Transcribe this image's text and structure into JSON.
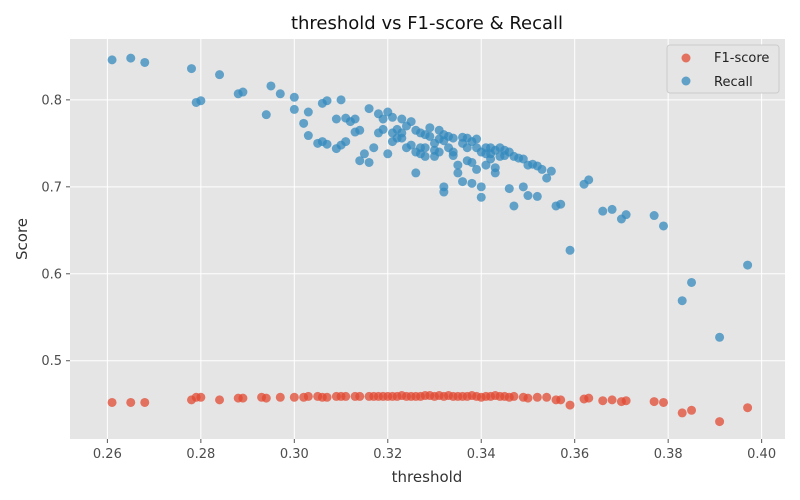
{
  "chart_data": {
    "type": "scatter",
    "title": "threshold vs F1-score & Recall",
    "xlabel": "threshold",
    "ylabel": "Score",
    "xlim": [
      0.252,
      0.405
    ],
    "ylim": [
      0.41,
      0.87
    ],
    "xticks": [
      "0.26",
      "0.28",
      "0.30",
      "0.32",
      "0.34",
      "0.36",
      "0.38",
      "0.40"
    ],
    "yticks": [
      "0.5",
      "0.6",
      "0.7",
      "0.8"
    ],
    "grid": true,
    "legend_position": "top-right",
    "background": "#e5e5e5",
    "series": [
      {
        "name": "F1-score",
        "color": "#e24a33",
        "points": [
          [
            0.261,
            0.452
          ],
          [
            0.265,
            0.452
          ],
          [
            0.268,
            0.452
          ],
          [
            0.278,
            0.455
          ],
          [
            0.279,
            0.458
          ],
          [
            0.28,
            0.458
          ],
          [
            0.284,
            0.455
          ],
          [
            0.288,
            0.457
          ],
          [
            0.289,
            0.457
          ],
          [
            0.293,
            0.458
          ],
          [
            0.294,
            0.457
          ],
          [
            0.297,
            0.458
          ],
          [
            0.3,
            0.458
          ],
          [
            0.302,
            0.458
          ],
          [
            0.303,
            0.459
          ],
          [
            0.305,
            0.459
          ],
          [
            0.306,
            0.458
          ],
          [
            0.307,
            0.458
          ],
          [
            0.309,
            0.459
          ],
          [
            0.31,
            0.459
          ],
          [
            0.311,
            0.459
          ],
          [
            0.313,
            0.459
          ],
          [
            0.314,
            0.459
          ],
          [
            0.316,
            0.459
          ],
          [
            0.317,
            0.459
          ],
          [
            0.318,
            0.459
          ],
          [
            0.319,
            0.459
          ],
          [
            0.32,
            0.459
          ],
          [
            0.321,
            0.459
          ],
          [
            0.322,
            0.459
          ],
          [
            0.323,
            0.46
          ],
          [
            0.324,
            0.459
          ],
          [
            0.325,
            0.459
          ],
          [
            0.326,
            0.459
          ],
          [
            0.327,
            0.459
          ],
          [
            0.328,
            0.46
          ],
          [
            0.329,
            0.46
          ],
          [
            0.33,
            0.459
          ],
          [
            0.331,
            0.46
          ],
          [
            0.332,
            0.459
          ],
          [
            0.333,
            0.46
          ],
          [
            0.334,
            0.459
          ],
          [
            0.335,
            0.459
          ],
          [
            0.336,
            0.459
          ],
          [
            0.337,
            0.459
          ],
          [
            0.338,
            0.46
          ],
          [
            0.339,
            0.459
          ],
          [
            0.34,
            0.458
          ],
          [
            0.341,
            0.459
          ],
          [
            0.342,
            0.459
          ],
          [
            0.343,
            0.46
          ],
          [
            0.344,
            0.459
          ],
          [
            0.345,
            0.459
          ],
          [
            0.346,
            0.458
          ],
          [
            0.347,
            0.459
          ],
          [
            0.349,
            0.458
          ],
          [
            0.35,
            0.457
          ],
          [
            0.352,
            0.458
          ],
          [
            0.354,
            0.458
          ],
          [
            0.356,
            0.455
          ],
          [
            0.357,
            0.455
          ],
          [
            0.359,
            0.449
          ],
          [
            0.362,
            0.456
          ],
          [
            0.363,
            0.457
          ],
          [
            0.366,
            0.454
          ],
          [
            0.368,
            0.455
          ],
          [
            0.37,
            0.453
          ],
          [
            0.371,
            0.454
          ],
          [
            0.377,
            0.453
          ],
          [
            0.379,
            0.452
          ],
          [
            0.383,
            0.44
          ],
          [
            0.385,
            0.443
          ],
          [
            0.391,
            0.43
          ],
          [
            0.397,
            0.446
          ]
        ]
      },
      {
        "name": "Recall",
        "color": "#348abd",
        "points": [
          [
            0.261,
            0.846
          ],
          [
            0.265,
            0.848
          ],
          [
            0.268,
            0.843
          ],
          [
            0.278,
            0.836
          ],
          [
            0.279,
            0.797
          ],
          [
            0.28,
            0.799
          ],
          [
            0.284,
            0.829
          ],
          [
            0.288,
            0.807
          ],
          [
            0.289,
            0.809
          ],
          [
            0.294,
            0.783
          ],
          [
            0.295,
            0.816
          ],
          [
            0.297,
            0.807
          ],
          [
            0.3,
            0.803
          ],
          [
            0.3,
            0.789
          ],
          [
            0.302,
            0.773
          ],
          [
            0.303,
            0.786
          ],
          [
            0.303,
            0.759
          ],
          [
            0.305,
            0.75
          ],
          [
            0.306,
            0.752
          ],
          [
            0.306,
            0.796
          ],
          [
            0.307,
            0.799
          ],
          [
            0.307,
            0.749
          ],
          [
            0.309,
            0.778
          ],
          [
            0.309,
            0.744
          ],
          [
            0.31,
            0.8
          ],
          [
            0.31,
            0.748
          ],
          [
            0.311,
            0.752
          ],
          [
            0.311,
            0.779
          ],
          [
            0.312,
            0.775
          ],
          [
            0.313,
            0.778
          ],
          [
            0.313,
            0.763
          ],
          [
            0.314,
            0.765
          ],
          [
            0.314,
            0.73
          ],
          [
            0.315,
            0.738
          ],
          [
            0.316,
            0.79
          ],
          [
            0.316,
            0.728
          ],
          [
            0.317,
            0.745
          ],
          [
            0.318,
            0.762
          ],
          [
            0.318,
            0.784
          ],
          [
            0.319,
            0.778
          ],
          [
            0.319,
            0.766
          ],
          [
            0.32,
            0.786
          ],
          [
            0.32,
            0.738
          ],
          [
            0.321,
            0.78
          ],
          [
            0.321,
            0.762
          ],
          [
            0.321,
            0.752
          ],
          [
            0.322,
            0.756
          ],
          [
            0.322,
            0.766
          ],
          [
            0.323,
            0.762
          ],
          [
            0.323,
            0.756
          ],
          [
            0.323,
            0.778
          ],
          [
            0.324,
            0.745
          ],
          [
            0.324,
            0.77
          ],
          [
            0.325,
            0.775
          ],
          [
            0.325,
            0.748
          ],
          [
            0.326,
            0.765
          ],
          [
            0.326,
            0.716
          ],
          [
            0.326,
            0.74
          ],
          [
            0.327,
            0.762
          ],
          [
            0.327,
            0.745
          ],
          [
            0.327,
            0.738
          ],
          [
            0.328,
            0.76
          ],
          [
            0.328,
            0.745
          ],
          [
            0.328,
            0.735
          ],
          [
            0.329,
            0.768
          ],
          [
            0.329,
            0.758
          ],
          [
            0.33,
            0.75
          ],
          [
            0.33,
            0.742
          ],
          [
            0.33,
            0.735
          ],
          [
            0.331,
            0.765
          ],
          [
            0.331,
            0.755
          ],
          [
            0.331,
            0.74
          ],
          [
            0.332,
            0.76
          ],
          [
            0.332,
            0.753
          ],
          [
            0.332,
            0.7
          ],
          [
            0.332,
            0.694
          ],
          [
            0.333,
            0.758
          ],
          [
            0.333,
            0.745
          ],
          [
            0.334,
            0.756
          ],
          [
            0.334,
            0.74
          ],
          [
            0.334,
            0.736
          ],
          [
            0.335,
            0.725
          ],
          [
            0.335,
            0.716
          ],
          [
            0.336,
            0.757
          ],
          [
            0.336,
            0.75
          ],
          [
            0.336,
            0.706
          ],
          [
            0.337,
            0.745
          ],
          [
            0.337,
            0.756
          ],
          [
            0.337,
            0.73
          ],
          [
            0.338,
            0.752
          ],
          [
            0.338,
            0.728
          ],
          [
            0.338,
            0.704
          ],
          [
            0.339,
            0.745
          ],
          [
            0.339,
            0.755
          ],
          [
            0.339,
            0.72
          ],
          [
            0.34,
            0.74
          ],
          [
            0.34,
            0.7
          ],
          [
            0.34,
            0.688
          ],
          [
            0.341,
            0.745
          ],
          [
            0.341,
            0.738
          ],
          [
            0.341,
            0.725
          ],
          [
            0.342,
            0.745
          ],
          [
            0.342,
            0.738
          ],
          [
            0.342,
            0.732
          ],
          [
            0.343,
            0.742
          ],
          [
            0.343,
            0.716
          ],
          [
            0.343,
            0.722
          ],
          [
            0.344,
            0.745
          ],
          [
            0.344,
            0.735
          ],
          [
            0.345,
            0.742
          ],
          [
            0.345,
            0.736
          ],
          [
            0.346,
            0.74
          ],
          [
            0.346,
            0.698
          ],
          [
            0.347,
            0.735
          ],
          [
            0.347,
            0.678
          ],
          [
            0.348,
            0.733
          ],
          [
            0.349,
            0.732
          ],
          [
            0.349,
            0.7
          ],
          [
            0.35,
            0.725
          ],
          [
            0.35,
            0.69
          ],
          [
            0.351,
            0.726
          ],
          [
            0.352,
            0.724
          ],
          [
            0.352,
            0.689
          ],
          [
            0.353,
            0.72
          ],
          [
            0.354,
            0.71
          ],
          [
            0.355,
            0.718
          ],
          [
            0.356,
            0.678
          ],
          [
            0.357,
            0.68
          ],
          [
            0.359,
            0.627
          ],
          [
            0.362,
            0.703
          ],
          [
            0.363,
            0.708
          ],
          [
            0.366,
            0.672
          ],
          [
            0.368,
            0.674
          ],
          [
            0.37,
            0.663
          ],
          [
            0.371,
            0.668
          ],
          [
            0.377,
            0.667
          ],
          [
            0.379,
            0.655
          ],
          [
            0.383,
            0.569
          ],
          [
            0.385,
            0.59
          ],
          [
            0.391,
            0.527
          ],
          [
            0.397,
            0.61
          ]
        ]
      }
    ]
  }
}
